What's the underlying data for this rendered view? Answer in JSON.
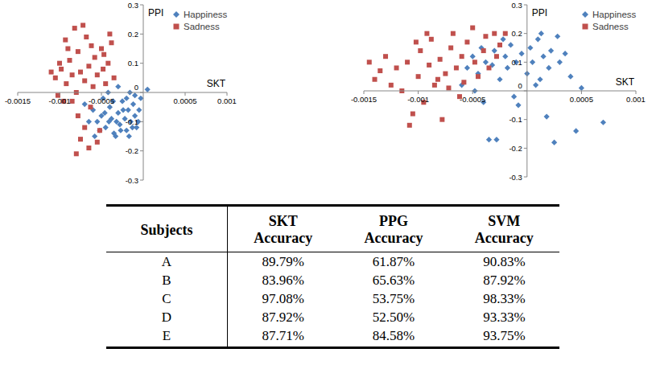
{
  "chart_data": [
    {
      "type": "scatter",
      "x_label": "SKT",
      "y_label": "PPI",
      "xlim": [
        -0.0015,
        0.001
      ],
      "xticks": [
        -0.0015,
        -0.001,
        -0.0005,
        0.0005,
        0.001
      ],
      "ylim": [
        -0.3,
        0.3
      ],
      "yticks": [
        -0.3,
        -0.2,
        -0.1,
        0,
        0.1,
        0.2,
        0.3
      ],
      "grid": false,
      "legend": "top-right",
      "series": [
        {
          "name": "Happiness",
          "color": "#4f81bd",
          "marker": "diamond",
          "x": [
            -0.0006,
            -0.00055,
            -0.0005,
            -0.00045,
            -0.0004,
            -0.00038,
            -0.00035,
            -0.0003,
            -0.00028,
            -0.00025,
            -0.00022,
            -0.0002,
            -0.00018,
            -0.00015,
            -0.00012,
            -0.0001,
            -8e-05,
            -5e-05,
            -3e-05,
            5e-05,
            -0.00048,
            -0.00042,
            -0.00033,
            -0.00027,
            -0.00065,
            -0.0007,
            -0.00058,
            -0.00036,
            -0.0003,
            -0.00017,
            -0.00013,
            -0.0002,
            -0.00024,
            -0.00041,
            -0.00052,
            -0.0001,
            -6e-05,
            -0.00016,
            -0.00032,
            -0.00046
          ],
          "values": [
            -0.06,
            -0.1,
            -0.08,
            -0.12,
            -0.05,
            -0.09,
            -0.14,
            -0.07,
            -0.11,
            -0.03,
            -0.09,
            -0.13,
            -0.06,
            -0.1,
            -0.04,
            -0.08,
            -0.12,
            -0.06,
            -0.02,
            0.01,
            -0.02,
            0,
            -0.15,
            -0.13,
            -0.1,
            -0.04,
            -0.15,
            -0.03,
            0.02,
            -0.15,
            -0.12,
            -0.02,
            -0.06,
            -0.1,
            -0.13,
            -0.01,
            -0.1,
            0,
            -0.1,
            -0.07
          ]
        },
        {
          "name": "Sadness",
          "color": "#c0504d",
          "marker": "square",
          "x": [
            -0.00105,
            -0.00098,
            -0.00092,
            -0.00088,
            -0.00085,
            -0.0008,
            -0.00078,
            -0.00075,
            -0.0007,
            -0.00068,
            -0.00065,
            -0.0006,
            -0.00058,
            -0.00055,
            -0.0005,
            -0.00048,
            -0.00045,
            -0.00042,
            -0.0004,
            -0.00095,
            -0.0009,
            -0.001,
            -0.0011,
            -0.00102,
            -0.00082,
            -0.00072,
            -0.00063,
            -0.0007,
            -0.00078,
            -0.00075,
            -0.00065,
            -0.0008,
            -0.00055,
            -0.00052,
            -0.00085,
            -0.00062,
            -0.00047,
            -0.00035,
            -0.00038,
            -0.00093
          ],
          "values": [
            0.05,
            0.08,
            0.03,
            0.11,
            0.06,
            0,
            0.14,
            0.07,
            0.04,
            0.19,
            0.09,
            0.02,
            0.12,
            0.06,
            0.15,
            0.08,
            0.03,
            0.1,
            0.2,
            -0.03,
            0.15,
            0.1,
            0.07,
            -0.01,
            0.22,
            0.23,
            -0.05,
            -0.12,
            -0.08,
            -0.16,
            -0.19,
            -0.21,
            -0.17,
            -0.13,
            -0.03,
            0.16,
            0.13,
            0.05,
            0.17,
            0.18
          ]
        }
      ]
    },
    {
      "type": "scatter",
      "x_label": "SKT",
      "y_label": "PPI",
      "xlim": [
        -0.0015,
        0.001
      ],
      "xticks": [
        -0.0015,
        -0.001,
        -0.0005,
        0.0005,
        0.001
      ],
      "ylim": [
        -0.3,
        0.3
      ],
      "yticks": [
        -0.3,
        -0.2,
        -0.1,
        0,
        0.1,
        0.2,
        0.3
      ],
      "grid": false,
      "legend": "top-right",
      "series": [
        {
          "name": "Happiness",
          "color": "#4f81bd",
          "marker": "diamond",
          "x": [
            -0.0006,
            -0.00055,
            -0.0005,
            -0.00045,
            -0.0004,
            -0.00038,
            -0.00035,
            -0.0003,
            -0.00028,
            -0.00025,
            -0.0002,
            -0.00018,
            -0.00015,
            -0.0001,
            -8e-05,
            -5e-05,
            0,
            3e-05,
            5e-05,
            0.0001,
            0.00012,
            0.00015,
            0.0002,
            0.00022,
            0.00025,
            0.0003,
            0.00035,
            0.0004,
            0.00045,
            0.0005,
            0.0007,
            0.00018,
            -0.00012,
            8e-05,
            -0.00022,
            -0.00032,
            0.00028,
            -0.00042,
            0.00013,
            -0.00048
          ],
          "values": [
            0.02,
            0.08,
            0.12,
            0.06,
            -0.04,
            0.1,
            -0.17,
            0.14,
            -0.17,
            0.04,
            0.12,
            0.08,
            0.16,
            0.1,
            -0.05,
            0.13,
            0.06,
            0.15,
            0.1,
            0.18,
            0.04,
            0.12,
            0.08,
            0.14,
            -0.18,
            0.1,
            0.13,
            0.05,
            -0.14,
            0.01,
            -0.11,
            -0.09,
            -0.02,
            0.02,
            0.18,
            0.09,
            0.19,
            0.15,
            0.2,
            0
          ]
        },
        {
          "name": "Sadness",
          "color": "#c0504d",
          "marker": "square",
          "x": [
            -0.00145,
            -0.0014,
            -0.00135,
            -0.0013,
            -0.00125,
            -0.0012,
            -0.00115,
            -0.0011,
            -0.00108,
            -0.00105,
            -0.001,
            -0.00098,
            -0.00095,
            -0.0009,
            -0.00088,
            -0.00085,
            -0.0008,
            -0.00078,
            -0.00075,
            -0.0007,
            -0.00068,
            -0.00065,
            -0.0006,
            -0.00058,
            -0.00055,
            -0.0005,
            -0.00048,
            -0.00045,
            -0.0004,
            -0.00038,
            -0.00035,
            -0.0003,
            -0.00028,
            -0.00025,
            -0.0002,
            -0.00092,
            -0.00082,
            -0.00072,
            -0.00062,
            -0.00102
          ],
          "values": [
            0.1,
            0.04,
            0.07,
            0.12,
            0.02,
            0.08,
            0,
            0.1,
            -0.12,
            -0.08,
            0.05,
            0.14,
            -0.04,
            0.09,
            0.18,
            0.02,
            0.11,
            -0.1,
            0.06,
            0.15,
            0.2,
            0.08,
            0.12,
            0.03,
            0.17,
            0.22,
            0.1,
            0.05,
            0.14,
            0.19,
            0.08,
            0.2,
            0.12,
            0.16,
            0.2,
            0.2,
            0.04,
            0.01,
            -0.02,
            0.17
          ]
        }
      ]
    }
  ],
  "table": {
    "header": [
      "Subjects",
      "SKT Accuracy",
      "PPG Accuracy",
      "SVM Accuracy"
    ],
    "rows": [
      [
        "A",
        "89.79%",
        "61.87%",
        "90.83%"
      ],
      [
        "B",
        "83.96%",
        "65.63%",
        "87.92%"
      ],
      [
        "C",
        "97.08%",
        "53.75%",
        "98.33%"
      ],
      [
        "D",
        "87.92%",
        "52.50%",
        "93.33%"
      ],
      [
        "E",
        "87.71%",
        "84.58%",
        "93.75%"
      ]
    ]
  }
}
